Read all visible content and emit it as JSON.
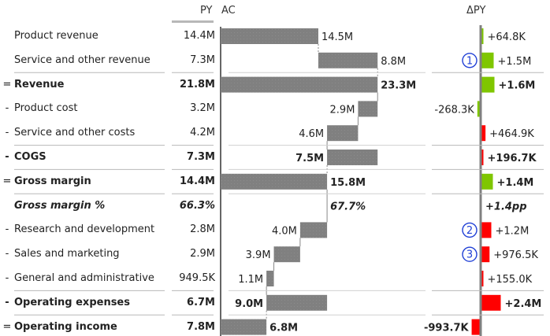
{
  "headers": {
    "py": "PY",
    "ac": "AC",
    "delta": "ΔPY"
  },
  "colors": {
    "bar": "#808080",
    "positive": "#7fc600",
    "negative": "#ff0000",
    "axis": "#808080",
    "marker": "#1f3fd6"
  },
  "rows": [
    {
      "prefix": "",
      "label": "Product revenue",
      "py": "14.4M",
      "ac_label": "14.5M",
      "delta_label": "+64.8K",
      "style": "normal"
    },
    {
      "prefix": "",
      "label": "Service and other revenue",
      "py": "7.3M",
      "ac_label": "8.8M",
      "delta_label": "+1.5M",
      "style": "normal",
      "marker": "1"
    },
    {
      "prefix": "=",
      "label": "Revenue",
      "py": "21.8M",
      "ac_label": "23.3M",
      "delta_label": "+1.6M",
      "style": "bold"
    },
    {
      "prefix": "-",
      "label": "Product cost",
      "py": "3.2M",
      "ac_label": "2.9M",
      "delta_label": "-268.3K",
      "style": "normal"
    },
    {
      "prefix": "-",
      "label": "Service and other costs",
      "py": "4.2M",
      "ac_label": "4.6M",
      "delta_label": "+464.9K",
      "style": "normal"
    },
    {
      "prefix": "-",
      "label": "COGS",
      "py": "7.3M",
      "ac_label": "7.5M",
      "delta_label": "+196.7K",
      "style": "bold"
    },
    {
      "prefix": "=",
      "label": "Gross margin",
      "py": "14.4M",
      "ac_label": "15.8M",
      "delta_label": "+1.4M",
      "style": "bold"
    },
    {
      "prefix": "",
      "label": "Gross margin %",
      "py": "66.3%",
      "ac_label": "67.7%",
      "delta_label": "+1.4pp",
      "style": "bolditalic"
    },
    {
      "prefix": "-",
      "label": "Research and development",
      "py": "2.8M",
      "ac_label": "4.0M",
      "delta_label": "+1.2M",
      "style": "normal",
      "marker": "2"
    },
    {
      "prefix": "-",
      "label": "Sales and marketing",
      "py": "2.9M",
      "ac_label": "3.9M",
      "delta_label": "+976.5K",
      "style": "normal",
      "marker": "3"
    },
    {
      "prefix": "-",
      "label": "General and administrative",
      "py": "949.5K",
      "ac_label": "1.1M",
      "delta_label": "+155.0K",
      "style": "normal"
    },
    {
      "prefix": "-",
      "label": "Operating expenses",
      "py": "6.7M",
      "ac_label": "9.0M",
      "delta_label": "+2.4M",
      "style": "bold"
    },
    {
      "prefix": "=",
      "label": "Operating income",
      "py": "7.8M",
      "ac_label": "6.8M",
      "delta_label": "-993.7K",
      "style": "bold"
    }
  ],
  "chart_data": {
    "type": "bar",
    "title": "",
    "subtype": "waterfall-with-variance",
    "categories": [
      "Product revenue",
      "Service and other revenue",
      "Revenue",
      "Product cost",
      "Service and other costs",
      "COGS",
      "Gross margin",
      "Gross margin %",
      "Research and development",
      "Sales and marketing",
      "General and administrative",
      "Operating expenses",
      "Operating income"
    ],
    "series": [
      {
        "name": "AC",
        "values": [
          14.5,
          8.8,
          23.3,
          2.9,
          4.6,
          7.5,
          15.8,
          67.7,
          4.0,
          3.9,
          1.1,
          9.0,
          6.8
        ],
        "waterfall": [
          {
            "from": 0,
            "to": 14.5,
            "kind": "add"
          },
          {
            "from": 14.5,
            "to": 23.3,
            "kind": "add"
          },
          {
            "from": 0,
            "to": 23.3,
            "kind": "total"
          },
          {
            "from": 23.3,
            "to": 20.4,
            "kind": "sub"
          },
          {
            "from": 20.4,
            "to": 15.8,
            "kind": "sub"
          },
          {
            "from": 15.8,
            "to": 23.3,
            "kind": "subtotal"
          },
          {
            "from": 0,
            "to": 15.8,
            "kind": "total"
          },
          null,
          {
            "from": 15.8,
            "to": 11.8,
            "kind": "sub"
          },
          {
            "from": 11.8,
            "to": 7.9,
            "kind": "sub"
          },
          {
            "from": 7.9,
            "to": 6.8,
            "kind": "sub"
          },
          {
            "from": 6.8,
            "to": 15.8,
            "kind": "subtotal"
          },
          {
            "from": 0,
            "to": 6.8,
            "kind": "total"
          }
        ]
      },
      {
        "name": "PY",
        "values": [
          14.4,
          7.3,
          21.8,
          3.2,
          4.2,
          7.3,
          14.4,
          66.3,
          2.8,
          2.9,
          0.9495,
          6.7,
          7.8
        ]
      },
      {
        "name": "ΔPY",
        "values": [
          0.0648,
          1.5,
          1.6,
          -0.2683,
          0.4649,
          0.1967,
          1.4,
          1.4,
          1.2,
          0.9765,
          0.155,
          2.4,
          -0.9937
        ],
        "good": [
          true,
          true,
          true,
          true,
          false,
          false,
          true,
          true,
          false,
          false,
          false,
          false,
          false
        ]
      }
    ],
    "unit": "M",
    "xlabel": "",
    "ylabel": ""
  }
}
